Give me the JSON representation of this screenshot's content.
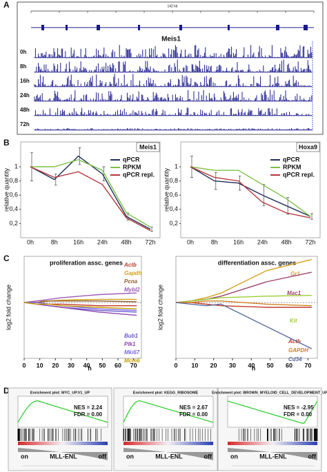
{
  "panel_labels": [
    "A",
    "B",
    "C",
    "D"
  ],
  "panel_a": {
    "scale_label": "142 kb",
    "gene": "Meis1",
    "tracks": [
      "0h",
      "8h",
      "16h",
      "24h",
      "48h",
      "72h"
    ]
  },
  "chart_data": [
    {
      "type": "line",
      "title": "Meis1",
      "y_label": "relative quantity",
      "categories": [
        "0h",
        "8h",
        "16h",
        "24h",
        "48h",
        "72h"
      ],
      "ylim": [
        0,
        1.35
      ],
      "yticks": [
        {
          "value": 0.2,
          "label": "0,2"
        },
        {
          "value": 0.4,
          "label": "0,4"
        },
        {
          "value": 0.6,
          "label": "0,6"
        },
        {
          "value": 0.8,
          "label": "0,8"
        },
        1
      ],
      "series": [
        {
          "name": "qPCR",
          "color": "#1f2d5c",
          "values": [
            1.0,
            0.82,
            1.15,
            0.9,
            0.3,
            0.12
          ],
          "errors": [
            0.2,
            0.08,
            0.12,
            0.1,
            0.05,
            0.03
          ]
        },
        {
          "name": "RPKM",
          "color": "#7cc242",
          "values": [
            1.0,
            1.0,
            1.1,
            0.95,
            0.35,
            0.15
          ]
        },
        {
          "name": "qPCR repl.",
          "color": "#b5353a",
          "values": [
            1.0,
            0.85,
            0.93,
            0.75,
            0.28,
            0.1
          ]
        }
      ]
    },
    {
      "type": "line",
      "title": "Hoxa9",
      "y_label": "relative quantity",
      "categories": [
        "0h",
        "8h",
        "16h",
        "24h",
        "48h",
        "72h"
      ],
      "ylim": [
        0,
        1.35
      ],
      "yticks": [
        {
          "value": 0.2,
          "label": "0,2"
        },
        {
          "value": 0.4,
          "label": "0,4"
        },
        {
          "value": 0.6,
          "label": "0,6"
        },
        {
          "value": 0.8,
          "label": "0,8"
        },
        1
      ],
      "series": [
        {
          "name": "qPCR",
          "color": "#1f2d5c",
          "values": [
            1.0,
            0.8,
            0.77,
            0.6,
            0.45,
            0.3
          ],
          "errors": [
            0.15,
            0.12,
            0.1,
            0.15,
            0.12,
            0.04
          ]
        },
        {
          "name": "RPKM",
          "color": "#7cc242",
          "values": [
            1.0,
            0.95,
            0.95,
            0.75,
            0.55,
            0.3
          ]
        },
        {
          "name": "qPCR repl.",
          "color": "#b5353a",
          "values": [
            1.0,
            0.85,
            0.8,
            0.5,
            0.35,
            0.28
          ]
        }
      ]
    },
    {
      "type": "line",
      "title": "proliferation assc. genes",
      "y_label": "log2 fold change",
      "x_label": "h",
      "x": [
        0,
        8,
        16,
        24,
        48,
        72
      ],
      "xlim": [
        0,
        75
      ],
      "xticks": [
        0,
        10,
        20,
        30,
        40,
        50,
        60,
        70
      ],
      "ylim": [
        -3.5,
        2.9
      ],
      "series": [
        {
          "name": "Actb",
          "color": "#c0392b",
          "values": [
            0,
            0,
            -0.1,
            -0.1,
            -0.2,
            -0.2
          ]
        },
        {
          "name": "Gapdh",
          "color": "#d4a017",
          "values": [
            0,
            0.1,
            0.1,
            0.15,
            0.2,
            0.2
          ]
        },
        {
          "name": "Pcna",
          "color": "#8b5a2b",
          "values": [
            0,
            0,
            0.1,
            0.1,
            0.1,
            0.05
          ]
        },
        {
          "name": "Mybl2",
          "color": "#9b59b6",
          "values": [
            0,
            0.1,
            0.2,
            0.3,
            0.5,
            0.6
          ]
        },
        {
          "name": "Bub1",
          "color": "#6a5acd",
          "values": [
            0,
            -0.1,
            -0.2,
            -0.3,
            -0.5,
            -0.6
          ]
        },
        {
          "name": "Plk1",
          "color": "#8e44ad",
          "values": [
            0,
            -0.1,
            -0.2,
            -0.3,
            -0.6,
            -0.8
          ]
        },
        {
          "name": "Mki67",
          "color": "#7b68ee",
          "values": [
            0,
            0,
            -0.1,
            -0.2,
            -0.4,
            -0.5
          ]
        },
        {
          "name": "Mcm6",
          "color": "#c8a000",
          "values": [
            0,
            -0.1,
            -0.1,
            -0.2,
            -0.3,
            -0.4
          ]
        }
      ]
    },
    {
      "type": "line",
      "title": "differentiation assc. genes",
      "y_label": "log2 fold change",
      "x_label": "h",
      "x": [
        0,
        8,
        16,
        24,
        48,
        72
      ],
      "xlim": [
        0,
        75
      ],
      "xticks": [
        0,
        10,
        20,
        30,
        40,
        50,
        60,
        70
      ],
      "ylim": [
        -3.5,
        2.9
      ],
      "series": [
        {
          "name": "Gr1",
          "color": "#d4a017",
          "values": [
            0,
            0.1,
            0.3,
            0.6,
            2.0,
            2.7
          ]
        },
        {
          "name": "Mac1",
          "color": "#a0426a",
          "values": [
            0,
            0.1,
            0.2,
            0.4,
            1.3,
            1.9
          ]
        },
        {
          "name": "Kit",
          "color": "#9acd32",
          "values": [
            0,
            0.1,
            0.2,
            0.3,
            0.4,
            0.45
          ]
        },
        {
          "name": "Actb",
          "color": "#c0392b",
          "values": [
            0,
            0,
            -0.1,
            -0.2,
            -0.3,
            -0.3
          ]
        },
        {
          "name": "GAPDH",
          "color": "#d08020",
          "values": [
            0,
            0,
            0.1,
            0.1,
            -0.1,
            -0.2
          ]
        },
        {
          "name": "Cd34",
          "color": "#5a6a9a",
          "values": [
            0,
            -0.1,
            -0.2,
            -0.1,
            -1.5,
            -2.9
          ]
        }
      ]
    }
  ],
  "panel_d": {
    "plots": [
      {
        "title": "Enrichment plot: MYC_UP.V1_UP",
        "nes": "NES = 2.24",
        "fdr": "FDR = 0.00"
      },
      {
        "title": "Enrichment plot: KEGG_RIBOSOME",
        "nes": "NES = 2.67",
        "fdr": "FDR = 0.00"
      },
      {
        "title": "Enrichment plot: BROWN_MYELOID_CELL_DEVELOPMENT_UP",
        "nes": "NES = -2.95",
        "fdr": "FDR = 0.00"
      }
    ],
    "left_label": "on",
    "center_label": "MLL-ENL",
    "right_label": "off"
  }
}
